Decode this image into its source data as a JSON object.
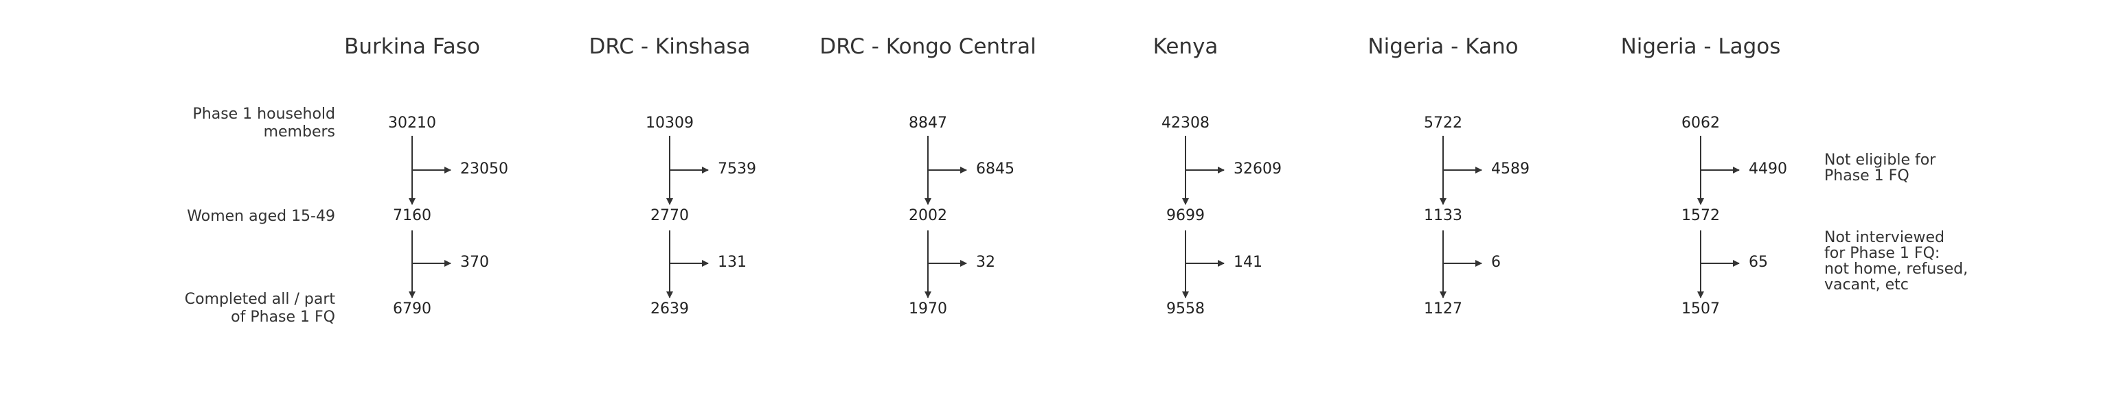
{
  "countries": [
    {
      "name": "Burkina Faso",
      "household_members": "30210",
      "not_eligible": "23050",
      "women": "7160",
      "not_interviewed": "370",
      "completed": "6790"
    },
    {
      "name": "DRC - Kinshasa",
      "household_members": "10309",
      "not_eligible": "7539",
      "women": "2770",
      "not_interviewed": "131",
      "completed": "2639"
    },
    {
      "name": "DRC - Kongo Central",
      "household_members": "8847",
      "not_eligible": "6845",
      "women": "2002",
      "not_interviewed": "32",
      "completed": "1970"
    },
    {
      "name": "Kenya",
      "household_members": "42308",
      "not_eligible": "32609",
      "women": "9699",
      "not_interviewed": "141",
      "completed": "9558"
    },
    {
      "name": "Nigeria - Kano",
      "household_members": "5722",
      "not_eligible": "4589",
      "women": "1133",
      "not_interviewed": "6",
      "completed": "1127"
    },
    {
      "name": "Nigeria - Lagos",
      "household_members": "6062",
      "not_eligible": "4490",
      "women": "1572",
      "not_interviewed": "65",
      "completed": "1507"
    }
  ],
  "row_labels": {
    "household": [
      "Phase 1 household",
      "members"
    ],
    "women": "Women aged 15-49",
    "completed": [
      "Completed all / part",
      "of Phase 1 FQ"
    ]
  },
  "notes": {
    "not_eligible": [
      "Not eligible for",
      "Phase 1 FQ"
    ],
    "not_interviewed": [
      "Not interviewed",
      "for Phase 1 FQ:",
      "not home, refused,",
      "vacant, etc"
    ]
  },
  "colors": {
    "line": "#333333",
    "text": "#222222"
  }
}
